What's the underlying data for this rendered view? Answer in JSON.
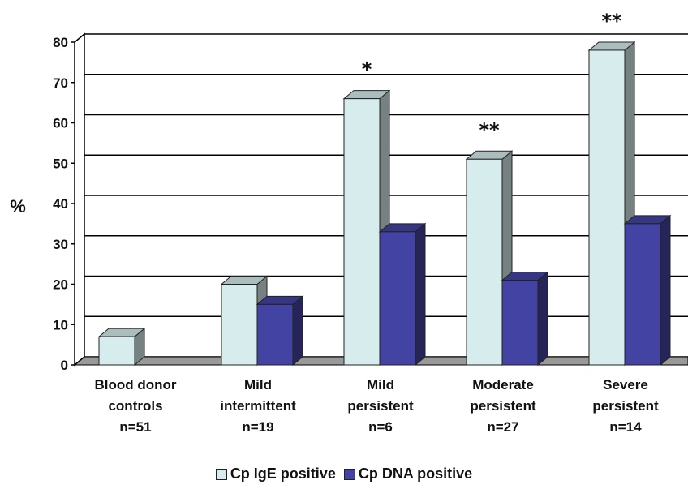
{
  "chart_data": {
    "type": "bar",
    "ylabel": "%",
    "ylim": [
      0,
      80
    ],
    "yticks": [
      "0",
      "10",
      "20",
      "30",
      "40",
      "50",
      "60",
      "70",
      "80"
    ],
    "categories": [
      [
        "Blood donor",
        "controls",
        "n=51"
      ],
      [
        "Mild",
        "intermittent",
        "n=19"
      ],
      [
        "Mild",
        "persistent",
        "n=6"
      ],
      [
        "Moderate",
        "persistent",
        "n=27"
      ],
      [
        "Severe",
        "persistent",
        "n=14"
      ]
    ],
    "series": [
      {
        "name": "Cp IgE positive",
        "values": [
          7,
          20,
          66,
          51,
          78
        ],
        "color": "#d7ecec"
      },
      {
        "name": "Cp DNA positive",
        "values": [
          0,
          15,
          33,
          21,
          35
        ],
        "color": "#4343a3"
      }
    ],
    "annotations": [
      "",
      "",
      "*",
      "**",
      "**"
    ],
    "grid": true
  }
}
